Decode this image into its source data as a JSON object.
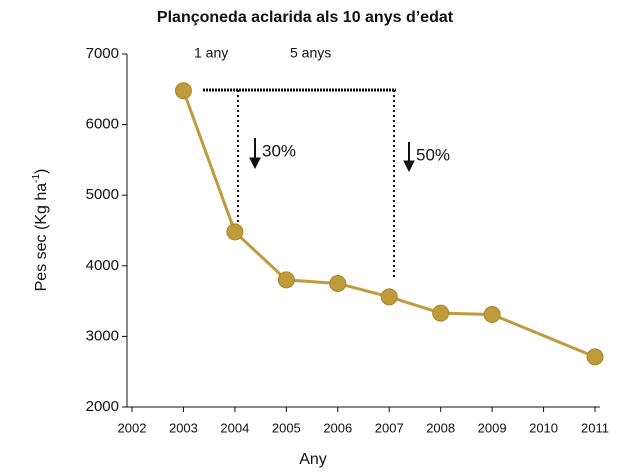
{
  "chart_data": {
    "type": "line",
    "title": "Plançoneda aclarida als 10 anys d’edat",
    "y_label": {
      "text": "Pes sec (Kg ha",
      "superscript": "-1",
      "close": ")"
    },
    "x_label": "Any",
    "x": [
      2003,
      2004,
      2005,
      2006,
      2007,
      2008,
      2009,
      2011
    ],
    "series": [
      {
        "name": "Pes sec",
        "color": "#bf9b3c",
        "values": [
          6480,
          4480,
          3800,
          3750,
          3560,
          3330,
          3310,
          2710
        ]
      }
    ],
    "xlim": [
      2002,
      2011
    ],
    "xticks": [
      2002,
      2003,
      2004,
      2005,
      2006,
      2007,
      2008,
      2009,
      2010,
      2011
    ],
    "ylim": [
      2000,
      7000
    ],
    "yticks": [
      2000,
      3000,
      4000,
      5000,
      6000,
      7000
    ],
    "annotations": [
      "1 any",
      "5 anys",
      "30%",
      "50%"
    ]
  }
}
